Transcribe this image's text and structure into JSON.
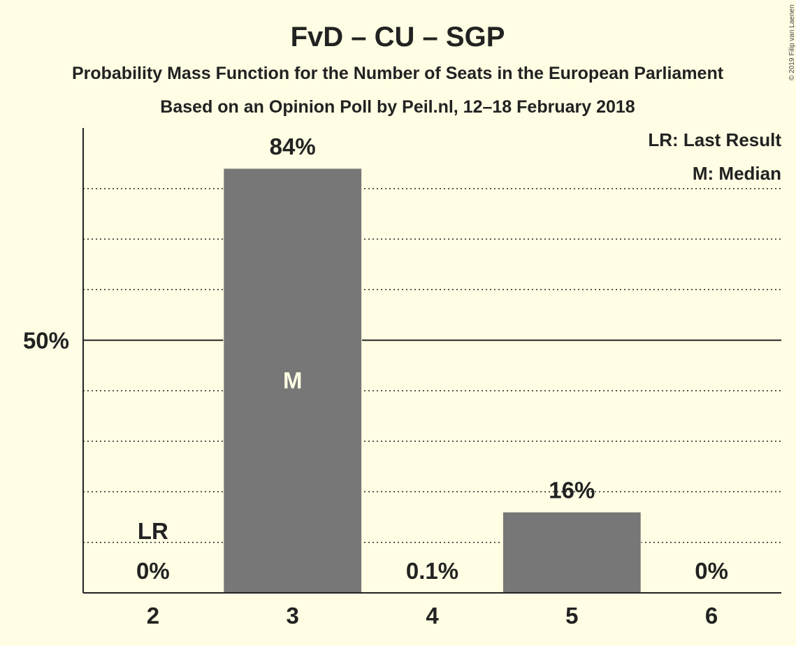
{
  "chart_data": {
    "type": "bar",
    "title": "FvD – CU – SGP",
    "subtitle": "Probability Mass Function for the Number of Seats in the European Parliament",
    "subtitle2": "Based on an Opinion Poll by Peil.nl, 12–18 February 2018",
    "categories": [
      "2",
      "3",
      "4",
      "5",
      "6"
    ],
    "values": [
      0,
      84,
      0.1,
      16,
      0
    ],
    "value_labels": [
      "0%",
      "84%",
      "0.1%",
      "16%",
      "0%"
    ],
    "ylim": [
      0,
      92
    ],
    "yticks": [
      {
        "value": 50,
        "label": "50%"
      }
    ],
    "minor_gridlines": [
      10,
      20,
      30,
      40,
      60,
      70,
      80
    ],
    "last_result_category": "2",
    "last_result_label": "LR",
    "median_category": "3",
    "median_label": "M",
    "legend": [
      "LR: Last Result",
      "M: Median"
    ],
    "legend_position": "top-right",
    "bar_color": "#777777"
  },
  "copyright": "© 2019 Filip van Laenen"
}
